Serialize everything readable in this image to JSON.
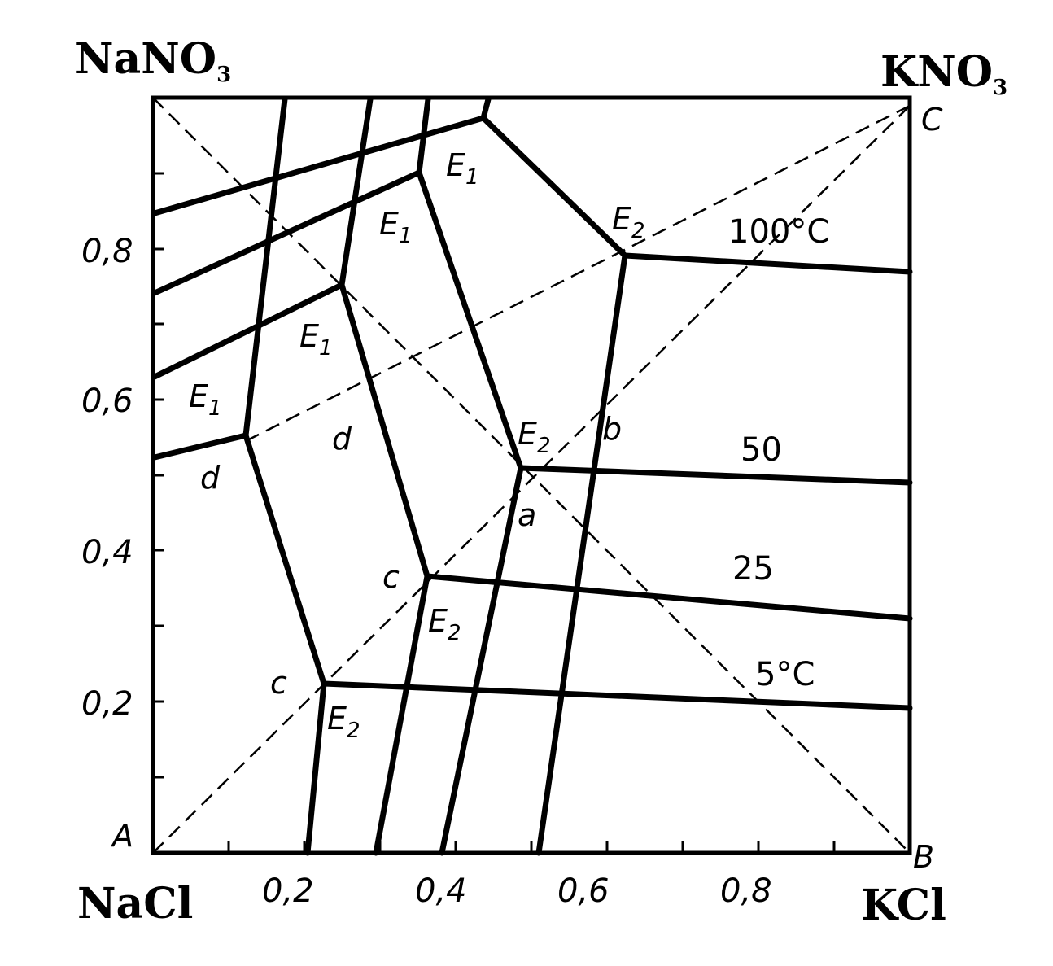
{
  "diagram": {
    "corners": {
      "top_left": "NaNO",
      "top_left_sub": "3",
      "top_right": "KNO",
      "top_right_sub": "3",
      "bottom_left": "NaCl",
      "bottom_right": "KCl"
    },
    "vertices": {
      "a": "A",
      "b": "B",
      "c": "C"
    },
    "y_ticks": [
      "0,8",
      "0,6",
      "0,4",
      "0,2"
    ],
    "x_ticks": [
      "0,2",
      "0,4",
      "0,6",
      "0,8"
    ],
    "temperatures": [
      "100°C",
      "50",
      "25",
      "5°C"
    ],
    "points": {
      "e1": "E",
      "e2": "E",
      "sub1": "1",
      "sub2": "2",
      "d": "d",
      "c": "c",
      "a": "a",
      "b": "b"
    }
  }
}
